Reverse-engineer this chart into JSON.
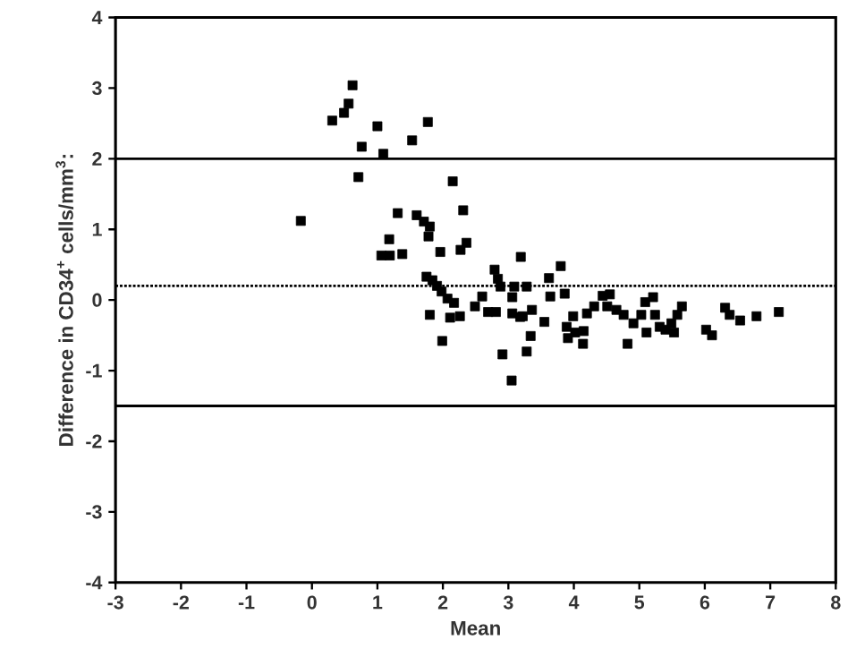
{
  "chart_data": {
    "type": "scatter",
    "xlabel": "Mean",
    "ylabel": "Difference in CD34$^{+}$ cells/mm$^{3}$:",
    "x": [
      -0.17,
      0.62,
      0.56,
      0.49,
      0.31,
      1.0,
      1.77,
      1.53,
      0.76,
      1.09,
      0.71,
      2.15,
      2.31,
      1.31,
      1.6,
      1.71,
      1.8,
      1.78,
      1.18,
      2.36,
      2.27,
      1.96,
      1.06,
      1.19,
      1.38,
      3.19,
      1.75,
      1.84,
      1.91,
      1.98,
      2.07,
      2.17,
      2.79,
      2.84,
      2.88,
      3.09,
      3.06,
      2.6,
      2.49,
      2.69,
      2.81,
      1.8,
      2.11,
      2.26,
      3.06,
      3.18,
      1.99,
      2.91,
      3.05,
      3.8,
      3.28,
      3.62,
      3.64,
      3.86,
      3.22,
      3.36,
      3.55,
      3.34,
      3.28,
      3.89,
      3.99,
      3.91,
      4.02,
      4.14,
      4.15,
      4.2,
      4.31,
      4.44,
      4.55,
      4.51,
      4.65,
      4.76,
      4.82,
      4.91,
      5.03,
      5.11,
      5.09,
      5.21,
      5.24,
      5.31,
      5.4,
      5.49,
      5.58,
      5.65,
      5.53,
      6.02,
      6.11,
      6.31,
      6.38,
      6.54,
      6.79,
      7.13
    ],
    "values": [
      1.12,
      3.04,
      2.78,
      2.65,
      2.54,
      2.46,
      2.52,
      2.26,
      2.17,
      2.07,
      1.74,
      1.68,
      1.27,
      1.23,
      1.2,
      1.11,
      1.04,
      0.9,
      0.86,
      0.81,
      0.71,
      0.68,
      0.63,
      0.63,
      0.65,
      0.61,
      0.33,
      0.28,
      0.2,
      0.12,
      0.02,
      -0.04,
      0.43,
      0.3,
      0.19,
      0.19,
      0.04,
      0.05,
      -0.09,
      -0.17,
      -0.17,
      -0.21,
      -0.25,
      -0.23,
      -0.19,
      -0.24,
      -0.58,
      -0.77,
      -1.14,
      0.48,
      0.19,
      0.31,
      0.05,
      0.09,
      -0.23,
      -0.14,
      -0.31,
      -0.51,
      -0.73,
      -0.38,
      -0.23,
      -0.54,
      -0.46,
      -0.62,
      -0.44,
      -0.19,
      -0.09,
      0.06,
      0.08,
      -0.09,
      -0.14,
      -0.21,
      -0.62,
      -0.33,
      -0.21,
      -0.46,
      -0.03,
      0.04,
      -0.21,
      -0.38,
      -0.42,
      -0.33,
      -0.21,
      -0.09,
      -0.46,
      -0.42,
      -0.5,
      -0.11,
      -0.21,
      -0.29,
      -0.23,
      -0.17
    ],
    "color": "#000000",
    "marker": "square",
    "xlim": [
      -3,
      8
    ],
    "xticks": [
      -3,
      -2,
      -1,
      0,
      1,
      2,
      3,
      4,
      5,
      6,
      7,
      8
    ],
    "ylim": [
      -4,
      4
    ],
    "yticks": [
      -4,
      -3,
      -2,
      -1,
      0,
      1,
      2,
      3,
      4
    ],
    "ref_lines": [
      {
        "axis": "y",
        "value": 2,
        "line_style": "solid",
        "color": "#000000"
      },
      {
        "axis": "y",
        "value": 0.2,
        "line_style": "dotted",
        "color": "#000000"
      },
      {
        "axis": "y",
        "value": -1.5,
        "line_style": "solid",
        "color": "#000000"
      }
    ],
    "grid": false
  }
}
